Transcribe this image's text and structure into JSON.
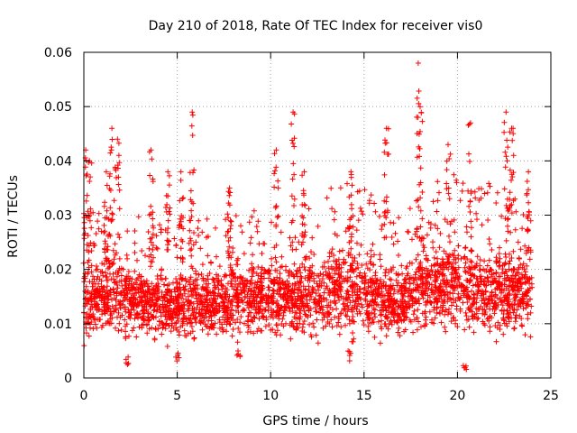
{
  "chart_data": {
    "type": "scatter",
    "title": "Day 210 of 2018, Rate Of TEC Index for receiver vis0",
    "xlabel": "GPS time / hours",
    "ylabel": "ROTI / TECUs",
    "xlim": [
      0,
      25
    ],
    "ylim": [
      0,
      0.06
    ],
    "grid": true,
    "marker": "plus",
    "color": "#ff0000",
    "x_ticks": [
      {
        "value": 0,
        "label": "0"
      },
      {
        "value": 5,
        "label": "5"
      },
      {
        "value": 10,
        "label": "10"
      },
      {
        "value": 15,
        "label": "15"
      },
      {
        "value": 20,
        "label": "20"
      },
      {
        "value": 25,
        "label": "25"
      }
    ],
    "y_ticks": [
      {
        "value": 0,
        "label": "0"
      },
      {
        "value": 0.01,
        "label": "0.01"
      },
      {
        "value": 0.02,
        "label": "0.02"
      },
      {
        "value": 0.03,
        "label": "0.03"
      },
      {
        "value": 0.04,
        "label": "0.04"
      },
      {
        "value": 0.05,
        "label": "0.05"
      },
      {
        "value": 0.06,
        "label": "0.06"
      }
    ],
    "series": [
      {
        "name": "ROTI",
        "x_range": [
          0,
          24
        ],
        "envelope": {
          "x": [
            0,
            1,
            2,
            3,
            4,
            5,
            6,
            7,
            8,
            9,
            10,
            11,
            12,
            13,
            14,
            15,
            16,
            17,
            18,
            19,
            20,
            21,
            22,
            23,
            24
          ],
          "typical_low": [
            0.005,
            0.005,
            0.005,
            0.005,
            0.005,
            0.005,
            0.005,
            0.005,
            0.006,
            0.006,
            0.006,
            0.006,
            0.005,
            0.005,
            0.005,
            0.005,
            0.005,
            0.005,
            0.006,
            0.006,
            0.005,
            0.005,
            0.005,
            0.005,
            0.006
          ],
          "typical_high": [
            0.025,
            0.027,
            0.027,
            0.025,
            0.025,
            0.024,
            0.025,
            0.024,
            0.026,
            0.027,
            0.026,
            0.026,
            0.027,
            0.029,
            0.03,
            0.029,
            0.027,
            0.025,
            0.028,
            0.031,
            0.032,
            0.03,
            0.03,
            0.029,
            0.026
          ]
        },
        "peaks": [
          {
            "x": 0.1,
            "y": 0.042
          },
          {
            "x": 0.3,
            "y": 0.04
          },
          {
            "x": 1.2,
            "y": 0.038
          },
          {
            "x": 1.5,
            "y": 0.046
          },
          {
            "x": 1.8,
            "y": 0.044
          },
          {
            "x": 3.6,
            "y": 0.042
          },
          {
            "x": 4.5,
            "y": 0.038
          },
          {
            "x": 5.2,
            "y": 0.038
          },
          {
            "x": 5.8,
            "y": 0.049
          },
          {
            "x": 7.8,
            "y": 0.035
          },
          {
            "x": 10.3,
            "y": 0.042
          },
          {
            "x": 11.2,
            "y": 0.049
          },
          {
            "x": 11.8,
            "y": 0.038
          },
          {
            "x": 14.3,
            "y": 0.038
          },
          {
            "x": 16.2,
            "y": 0.046
          },
          {
            "x": 17.9,
            "y": 0.058
          },
          {
            "x": 18.0,
            "y": 0.05
          },
          {
            "x": 19.5,
            "y": 0.043
          },
          {
            "x": 20.7,
            "y": 0.047
          },
          {
            "x": 22.6,
            "y": 0.049
          },
          {
            "x": 22.9,
            "y": 0.046
          },
          {
            "x": 23.8,
            "y": 0.038
          }
        ],
        "dips": [
          {
            "x": 2.3,
            "y": 0.002
          },
          {
            "x": 20.4,
            "y": 0.0015
          },
          {
            "x": 5.0,
            "y": 0.003
          },
          {
            "x": 8.3,
            "y": 0.003
          },
          {
            "x": 14.2,
            "y": 0.003
          }
        ]
      }
    ]
  }
}
